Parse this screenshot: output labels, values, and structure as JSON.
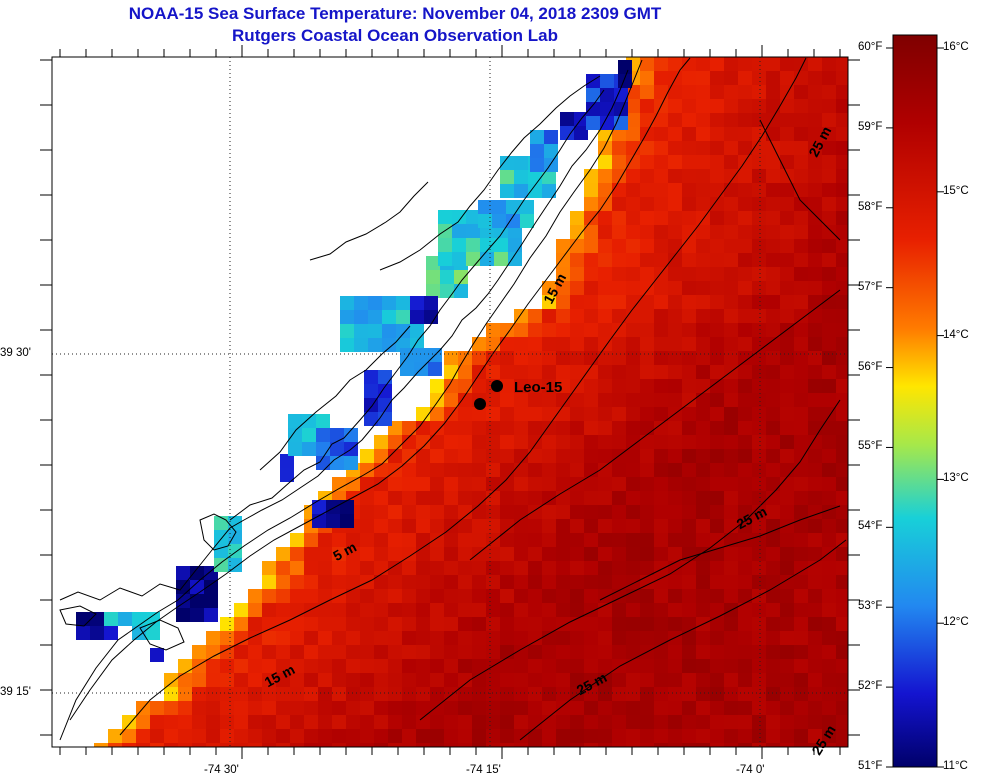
{
  "title": "NOAA-15 Sea Surface Temperature:  November 04, 2018 2309 GMT",
  "subtitle": "Rutgers Coastal Ocean Observation Lab",
  "axes": {
    "lon_labels": [
      "-74 30'",
      "-74 15'",
      "-74 0'"
    ],
    "lat_labels": [
      "39 30'",
      "39 15'"
    ]
  },
  "colorbar": {
    "fahrenheit": [
      "60°F",
      "59°F",
      "58°F",
      "57°F",
      "56°F",
      "55°F",
      "54°F",
      "53°F",
      "52°F",
      "51°F"
    ],
    "celsius": [
      "16°C",
      "15°C",
      "14°C",
      "13°C",
      "12°C",
      "11°C"
    ],
    "colors": [
      "#7f0000",
      "#c8100c",
      "#ff3a00",
      "#ff8a00",
      "#ffd200",
      "#c8ee36",
      "#5fdc9c",
      "#18c2e6",
      "#2a62f0",
      "#1010c8",
      "#00006a"
    ]
  },
  "annotations": {
    "station": "Leo-15",
    "depth_5": "5 m",
    "depth_15a": "15 m",
    "depth_15b": "15 m",
    "depth_25a": "25 m",
    "depth_25b": "25 m",
    "depth_25c": "25 m",
    "depth_25d": "25 m"
  }
}
